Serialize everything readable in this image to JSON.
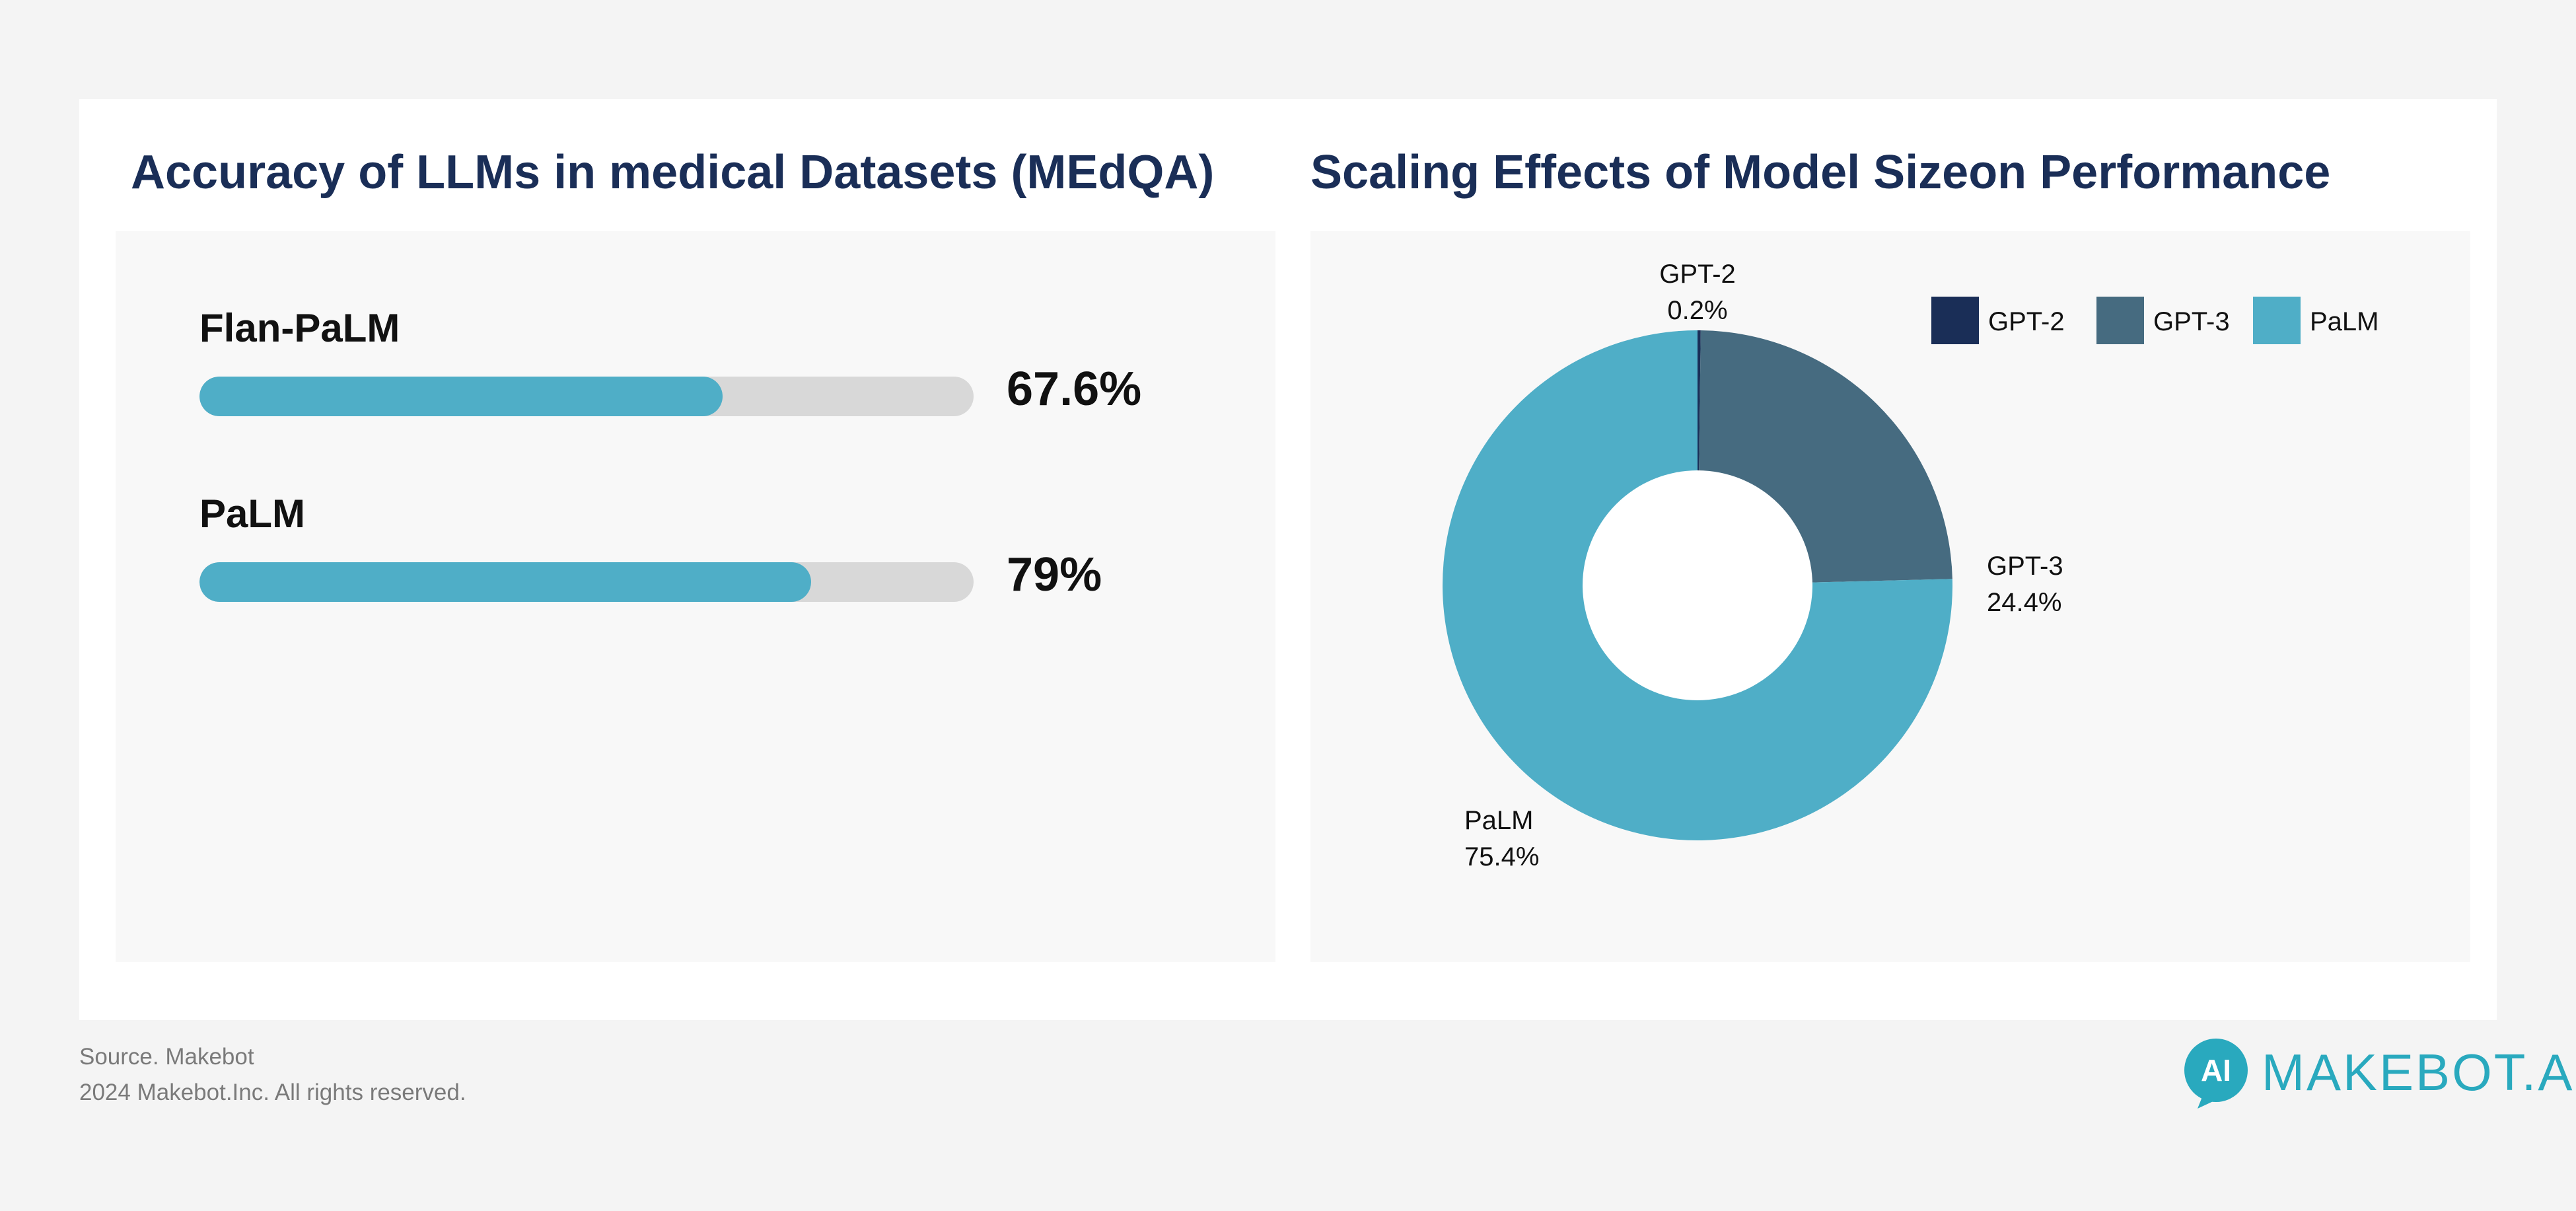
{
  "left_chart": {
    "title": "Accuracy of LLMs in medical Datasets (MEdQA)",
    "chart_data": {
      "type": "bar",
      "orientation": "horizontal",
      "categories": [
        "Flan-PaLM",
        "PaLM"
      ],
      "values": [
        67.6,
        79
      ],
      "value_labels": [
        "67.6%",
        "79%"
      ],
      "xlim": [
        0,
        100
      ],
      "bar_color": "#4faec7",
      "track_color": "#d8d8d8"
    }
  },
  "right_chart": {
    "title": "Scaling Effects of Model Sizeon Performance",
    "chart_data": {
      "type": "pie",
      "donut": true,
      "categories": [
        "GPT-2",
        "GPT-3",
        "PaLM"
      ],
      "values": [
        0.2,
        24.4,
        75.4
      ],
      "value_labels": [
        "0.2%",
        "24.4%",
        "75.4%"
      ],
      "colors": [
        "#1a2e57",
        "#466b80",
        "#4faec7"
      ],
      "legend": "top-right"
    }
  },
  "footer": {
    "source": "Source. Makebot",
    "copyright": "2024 Makebot.Inc. All rights reserved."
  },
  "brand": {
    "logo_mark": "AI",
    "name": "MAKEBOT.AI",
    "color": "#29a9be"
  }
}
